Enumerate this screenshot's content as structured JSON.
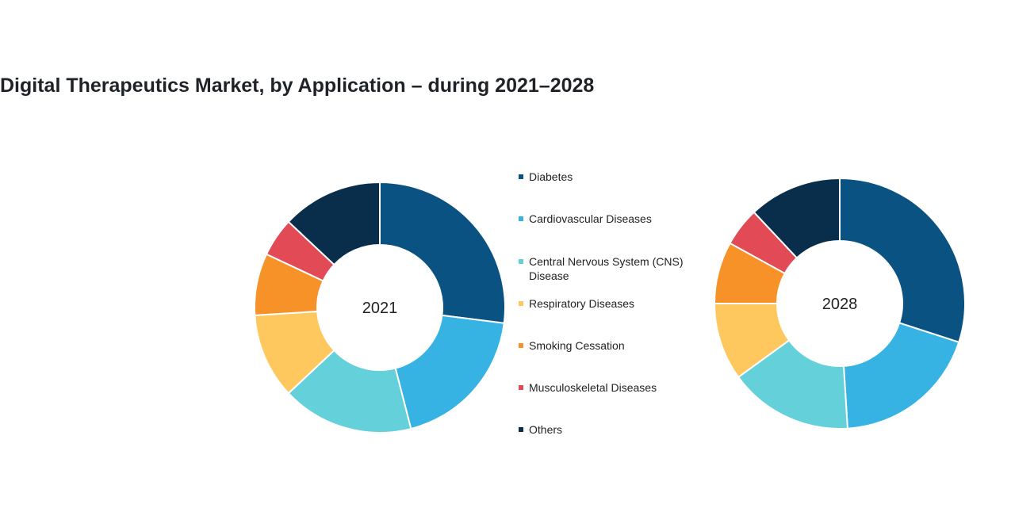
{
  "chart_data": {
    "type": "pie",
    "title": "Digital Therapeutics Market, by Application – during 2021–2028",
    "legend_position": "center",
    "categories": [
      "Diabetes",
      "Cardiovascular Diseases",
      "Central Nervous System (CNS) Disease",
      "Respiratory Diseases",
      "Smoking Cessation",
      "Musculoskeletal Diseases",
      "Others"
    ],
    "colors": [
      "#0a5281",
      "#36b2e3",
      "#63d0da",
      "#ffc85e",
      "#f79228",
      "#e24b56",
      "#082e4b"
    ],
    "series": [
      {
        "name": "2021",
        "values": [
          27,
          19,
          17,
          11,
          8,
          5,
          13
        ]
      },
      {
        "name": "2028",
        "values": [
          30,
          19,
          16,
          10,
          8,
          5,
          12
        ]
      }
    ]
  }
}
